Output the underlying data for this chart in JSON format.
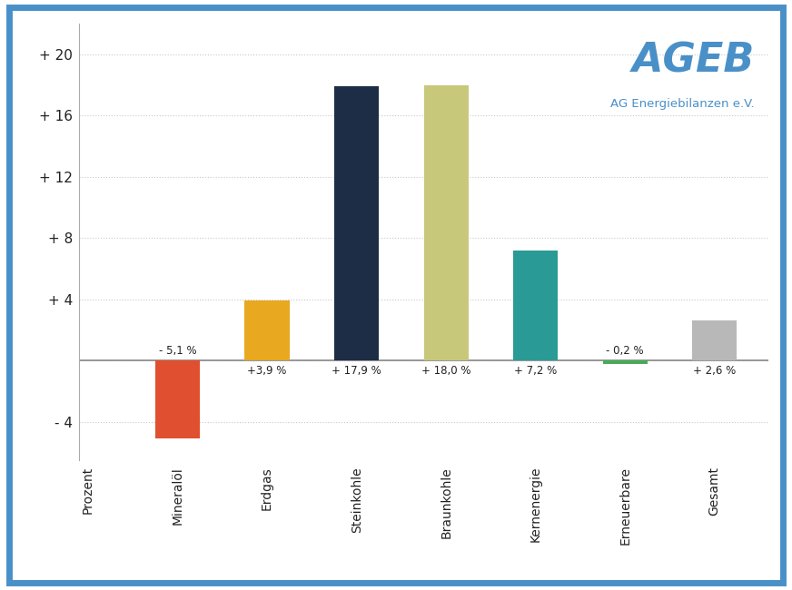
{
  "categories_xticks": [
    "Prozent",
    "Mineralöl",
    "Erdgas",
    "Steinkohle",
    "Braunkohle",
    "Kernenergie",
    "Erneuerbare",
    "Gesamt"
  ],
  "bar_categories": [
    "Mineralöl",
    "Erdgas",
    "Steinkohle",
    "Braunkohle",
    "Kernenergie",
    "Erneuerbare",
    "Gesamt"
  ],
  "values": [
    -5.1,
    3.9,
    17.9,
    18.0,
    7.2,
    -0.2,
    2.6
  ],
  "bar_colors": [
    "#e05030",
    "#e8a820",
    "#1c2d45",
    "#c8c87a",
    "#2a9a96",
    "#4aaa5a",
    "#b8b8b8"
  ],
  "labels_neg": [
    "- 5,1 %"
  ],
  "labels_pos": [
    "+3,9 %",
    "+ 17,9 %",
    "+ 18,0 %",
    "+ 7,2 %",
    "+ 2,6 %"
  ],
  "label_neg_0": [
    "- 0,2 %"
  ],
  "pct_labels": [
    "- 5,1 %",
    "+3,9 %",
    "+ 17,9 %",
    "+ 18,0 %",
    "+ 7,2 %",
    "- 0,2 %",
    "+ 2,6 %"
  ],
  "ylim": [
    -6.5,
    22
  ],
  "yticks": [
    20,
    16,
    12,
    8,
    4,
    0,
    -4
  ],
  "ytick_labels": [
    "+ 20",
    "+ 16",
    "+ 12",
    "+ 8",
    "+ 4",
    "",
    "- 4"
  ],
  "background_color": "#ffffff",
  "border_color": "#4a90c8",
  "ageb_color": "#4a90c8",
  "grid_color": "#c8c8c8",
  "bar_width": 0.5,
  "ageb_text": "AGEB",
  "ageb_sub": "AG Energiebilanzen e.V."
}
